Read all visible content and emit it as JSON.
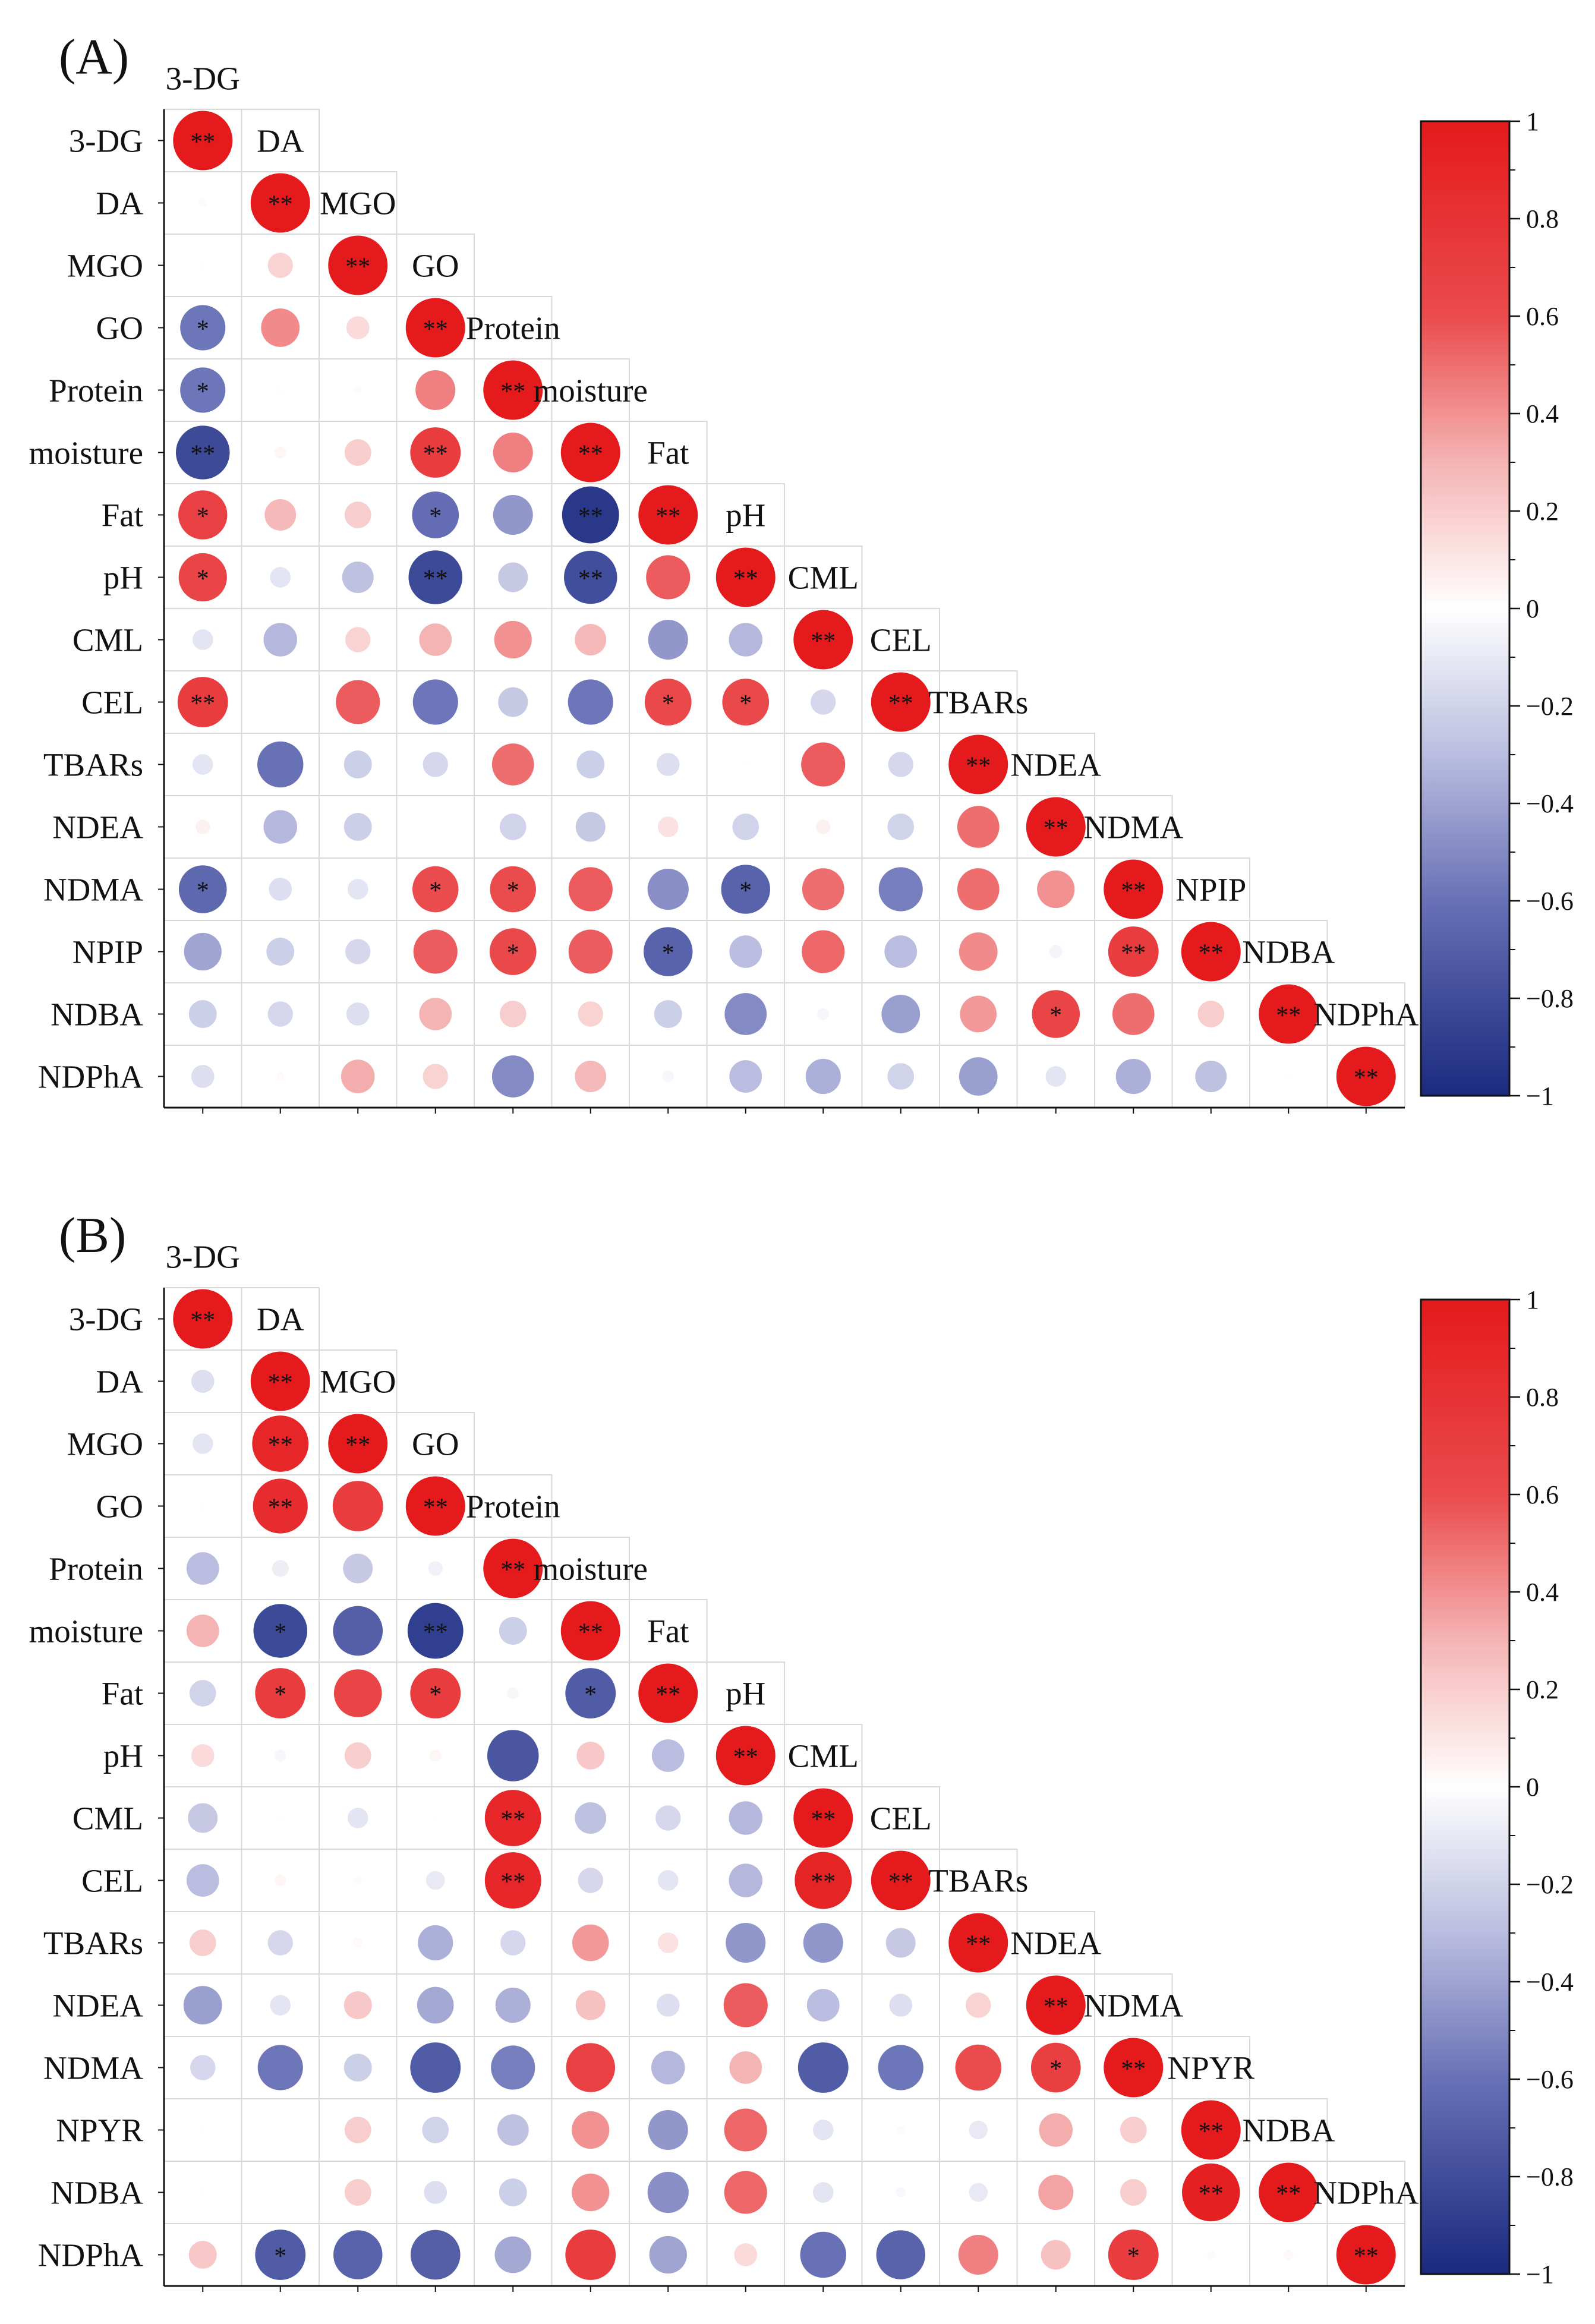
{
  "style": {
    "colorscale": [
      {
        "value": 1,
        "color": "#E41A1C"
      },
      {
        "value": 0.6,
        "color": "#EA4B4D"
      },
      {
        "value": 0.3,
        "color": "#F5B4B4"
      },
      {
        "value": 0,
        "color": "#FFFFFF"
      },
      {
        "value": -0.3,
        "color": "#BABDDF"
      },
      {
        "value": -0.6,
        "color": "#6871B6"
      },
      {
        "value": -1,
        "color": "#1A2A7F"
      }
    ],
    "grid_color": "#D9D9D9",
    "axis_color": "#111111"
  },
  "chart_data": [
    {
      "type": "heatmap",
      "panel_label": "(A)",
      "variables": [
        "3-DG",
        "DA",
        "MGO",
        "GO",
        "Protein",
        "moisture",
        "Fat",
        "pH",
        "CML",
        "CEL",
        "TBARs",
        "NDEA",
        "NDMA",
        "NPIP",
        "NDBA",
        "NDPhA"
      ],
      "value_range": [
        -1,
        1
      ],
      "values": [
        [
          1
        ],
        [
          -0.02,
          1
        ],
        [
          0.01,
          0.18,
          1
        ],
        [
          -0.58,
          0.42,
          0.15,
          1
        ],
        [
          -0.58,
          0.01,
          0.02,
          0.45,
          1
        ],
        [
          -0.82,
          0.04,
          0.2,
          0.72,
          0.45,
          1
        ],
        [
          0.68,
          0.28,
          0.2,
          -0.62,
          -0.45,
          -0.92,
          1
        ],
        [
          0.66,
          -0.12,
          -0.28,
          -0.82,
          -0.25,
          -0.8,
          0.55,
          1
        ],
        [
          -0.12,
          -0.32,
          0.18,
          0.3,
          0.4,
          0.28,
          -0.45,
          -0.32,
          1
        ],
        [
          0.72,
          0,
          0.55,
          -0.58,
          -0.25,
          -0.58,
          0.62,
          0.62,
          -0.18,
          1
        ],
        [
          -0.12,
          -0.6,
          -0.22,
          -0.18,
          0.5,
          -0.22,
          -0.15,
          0.01,
          0.55,
          -0.18,
          1
        ],
        [
          0.06,
          -0.32,
          -0.22,
          0,
          -0.2,
          -0.25,
          0.12,
          -0.2,
          0.06,
          -0.2,
          0.5,
          1
        ],
        [
          -0.65,
          -0.15,
          -0.12,
          0.6,
          0.6,
          0.55,
          -0.48,
          -0.68,
          0.5,
          -0.55,
          0.5,
          0.4,
          1
        ],
        [
          -0.4,
          -0.22,
          -0.18,
          0.55,
          0.62,
          0.55,
          -0.68,
          -0.3,
          0.52,
          -0.3,
          0.42,
          -0.05,
          0.72,
          1
        ],
        [
          -0.22,
          -0.18,
          -0.15,
          0.3,
          0.2,
          0.18,
          -0.22,
          -0.5,
          -0.04,
          -0.42,
          0.38,
          0.65,
          0.5,
          0.2,
          1
        ],
        [
          -0.15,
          0.02,
          0.32,
          0.18,
          -0.5,
          0.28,
          -0.04,
          -0.3,
          -0.35,
          -0.2,
          -0.42,
          -0.12,
          -0.35,
          -0.28,
          0.01,
          1
        ]
      ],
      "significance": [
        [
          "**"
        ],
        [
          "",
          "**"
        ],
        [
          "",
          "",
          "**"
        ],
        [
          "*",
          "",
          "",
          "**"
        ],
        [
          "*",
          "",
          "",
          "",
          "**"
        ],
        [
          "**",
          "",
          "",
          "**",
          "",
          "**"
        ],
        [
          "*",
          "",
          "",
          "*",
          "",
          "**",
          "**"
        ],
        [
          "*",
          "",
          "",
          "**",
          "",
          "**",
          "",
          "**"
        ],
        [
          "",
          "",
          "",
          "",
          "",
          "",
          "",
          "",
          "**"
        ],
        [
          "**",
          "",
          "",
          "",
          "",
          "",
          "*",
          "*",
          "",
          "**"
        ],
        [
          "",
          "",
          "",
          "",
          "",
          "",
          "",
          "",
          "",
          "",
          "**"
        ],
        [
          "",
          "",
          "",
          "",
          "",
          "",
          "",
          "",
          "",
          "",
          "",
          "**"
        ],
        [
          "*",
          "",
          "",
          "*",
          "*",
          "",
          "",
          "*",
          "",
          "",
          "",
          "",
          "**"
        ],
        [
          "",
          "",
          "",
          "",
          "*",
          "",
          "*",
          "",
          "",
          "",
          "",
          "",
          "**",
          "**"
        ],
        [
          "",
          "",
          "",
          "",
          "",
          "",
          "",
          "",
          "",
          "",
          "",
          "*",
          "",
          "",
          "**"
        ],
        [
          "",
          "",
          "",
          "",
          "",
          "",
          "",
          "",
          "",
          "",
          "",
          "",
          "",
          "",
          "",
          "**"
        ]
      ],
      "colorbar": {
        "range": [
          -1,
          1
        ],
        "ticks": [
          1,
          0.8,
          0.6,
          0.4,
          0.2,
          0,
          -0.2,
          -0.4,
          -0.6,
          -0.8,
          -1
        ],
        "tick_labels": [
          "1",
          "0.8",
          "0.6",
          "0.4",
          "0.2",
          "0",
          "−0.2",
          "−0.4",
          "−0.6",
          "−0.8",
          "−1"
        ]
      }
    },
    {
      "type": "heatmap",
      "panel_label": "(B)",
      "variables": [
        "3-DG",
        "DA",
        "MGO",
        "GO",
        "Protein",
        "moisture",
        "Fat",
        "pH",
        "CML",
        "CEL",
        "TBARs",
        "NDEA",
        "NDMA",
        "NPYR",
        "NDBA",
        "NDPhA"
      ],
      "value_range": [
        -1,
        1
      ],
      "values": [
        [
          1
        ],
        [
          -0.15,
          1
        ],
        [
          -0.12,
          0.9,
          1
        ],
        [
          0.01,
          0.85,
          0.72,
          1
        ],
        [
          -0.3,
          -0.08,
          -0.25,
          -0.06,
          1
        ],
        [
          0.3,
          -0.82,
          -0.7,
          -0.88,
          -0.22,
          1
        ],
        [
          -0.2,
          0.72,
          0.65,
          0.72,
          -0.04,
          -0.72,
          1
        ],
        [
          0.15,
          -0.04,
          0.2,
          0.04,
          -0.75,
          0.22,
          -0.3,
          1
        ],
        [
          -0.25,
          0.01,
          -0.12,
          0.01,
          0.9,
          -0.28,
          -0.18,
          -0.32,
          1
        ],
        [
          -0.3,
          0.04,
          0.02,
          -0.1,
          0.9,
          -0.18,
          -0.12,
          -0.32,
          0.92,
          1
        ],
        [
          0.2,
          -0.18,
          0.03,
          -0.35,
          -0.18,
          0.38,
          0.12,
          -0.45,
          -0.45,
          -0.25,
          1
        ],
        [
          -0.42,
          -0.12,
          0.22,
          -0.38,
          -0.35,
          0.25,
          -0.15,
          0.55,
          -0.3,
          -0.15,
          0.18,
          1
        ],
        [
          -0.18,
          -0.58,
          -0.22,
          -0.72,
          -0.55,
          0.68,
          -0.32,
          0.3,
          -0.72,
          -0.58,
          0.6,
          0.7,
          1
        ],
        [
          0.01,
          0,
          0.2,
          -0.2,
          -0.28,
          0.4,
          -0.45,
          0.52,
          -0.12,
          -0.02,
          -0.1,
          0.32,
          0.2,
          1
        ],
        [
          0.01,
          0,
          0.2,
          -0.15,
          -0.22,
          0.4,
          -0.48,
          0.52,
          -0.12,
          -0.03,
          -0.1,
          0.35,
          0.2,
          0.95,
          1
        ],
        [
          0.22,
          -0.72,
          -0.68,
          -0.7,
          -0.38,
          0.72,
          -0.4,
          0.15,
          -0.6,
          -0.68,
          0.45,
          0.25,
          0.72,
          0.02,
          0.03,
          1
        ]
      ],
      "significance": [
        [
          "**"
        ],
        [
          "",
          "**"
        ],
        [
          "",
          "**",
          "**"
        ],
        [
          "",
          "**",
          "",
          "**"
        ],
        [
          "",
          "",
          "",
          "",
          "**"
        ],
        [
          "",
          "*",
          "",
          "**",
          "",
          "**"
        ],
        [
          "",
          "*",
          "",
          "*",
          "",
          "*",
          "**"
        ],
        [
          "",
          "",
          "",
          "",
          "",
          "",
          "",
          "**"
        ],
        [
          "",
          "",
          "",
          "",
          "**",
          "",
          "",
          "",
          "**"
        ],
        [
          "",
          "",
          "",
          "",
          "**",
          "",
          "",
          "",
          "**",
          "**"
        ],
        [
          "",
          "",
          "",
          "",
          "",
          "",
          "",
          "",
          "",
          "",
          "**"
        ],
        [
          "",
          "",
          "",
          "",
          "",
          "",
          "",
          "",
          "",
          "",
          "",
          "**"
        ],
        [
          "",
          "",
          "",
          "",
          "",
          "",
          "",
          "",
          "",
          "",
          "",
          "*",
          "**"
        ],
        [
          "",
          "",
          "",
          "",
          "",
          "",
          "",
          "",
          "",
          "",
          "",
          "",
          "",
          "**"
        ],
        [
          "",
          "",
          "",
          "",
          "",
          "",
          "",
          "",
          "",
          "",
          "",
          "",
          "",
          "**",
          "**"
        ],
        [
          "",
          "*",
          "",
          "",
          "",
          "",
          "",
          "",
          "",
          "",
          "",
          "",
          "*",
          "",
          "",
          "**"
        ]
      ],
      "colorbar": {
        "range": [
          -1,
          1
        ],
        "ticks": [
          1,
          0.8,
          0.6,
          0.4,
          0.2,
          0,
          -0.2,
          -0.4,
          -0.6,
          -0.8,
          -1
        ],
        "tick_labels": [
          "1",
          "0.8",
          "0.6",
          "0.4",
          "0.2",
          "0",
          "−0.2",
          "−0.4",
          "−0.6",
          "−0.8",
          "−1"
        ]
      }
    }
  ]
}
